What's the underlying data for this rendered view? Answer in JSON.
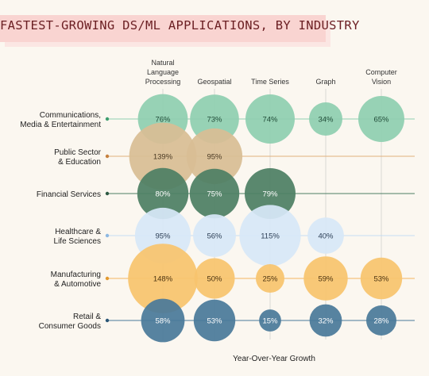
{
  "title": "FASTEST-GROWING DS/ML APPLICATIONS, BY INDUSTRY",
  "chart_data": {
    "type": "bubble-matrix",
    "xlabel": "Year-Over-Year Growth",
    "columns": [
      [
        "Natural",
        "Language",
        "Processing"
      ],
      [
        "Geospatial"
      ],
      [
        "Time Series"
      ],
      [
        "Graph"
      ],
      [
        "Computer",
        "Vision"
      ]
    ],
    "rows": [
      {
        "label": [
          "Communications,",
          "Media & Entertainment"
        ],
        "color": "#8fcfb0",
        "line": "#8fcfb0",
        "dot": "#3e9e6e",
        "text": "#1f4a36",
        "values": [
          76,
          73,
          74,
          34,
          65
        ],
        "labels": [
          "76%",
          "73%",
          "74%",
          "34%",
          "65%"
        ]
      },
      {
        "label": [
          "Public Sector",
          "& Education"
        ],
        "color": "#d8bd94",
        "line": "#e2b07d",
        "dot": "#c6813f",
        "text": "#4a3a24",
        "values": [
          139,
          95,
          null,
          null,
          null
        ],
        "labels": [
          "139%",
          "95%",
          "",
          "",
          ""
        ]
      },
      {
        "label": [
          "Financial Services"
        ],
        "color": "#4e7f64",
        "line": "#4e7f64",
        "dot": "#2e5a43",
        "text": "#ffffff",
        "values": [
          80,
          75,
          79,
          null,
          null
        ],
        "labels": [
          "80%",
          "75%",
          "79%",
          "",
          ""
        ]
      },
      {
        "label": [
          "Healthcare &",
          "Life Sciences"
        ],
        "color": "#d7e7f8",
        "line": "#c6dcf3",
        "dot": "#8db8e2",
        "text": "#2c3e55",
        "values": [
          95,
          56,
          115,
          40,
          null
        ],
        "labels": [
          "95%",
          "56%",
          "115%",
          "40%",
          ""
        ]
      },
      {
        "label": [
          "Manufacturing",
          "& Automotive"
        ],
        "color": "#f8c46e",
        "line": "#f3b560",
        "dot": "#e39a2f",
        "text": "#4b3310",
        "values": [
          148,
          50,
          25,
          59,
          53
        ],
        "labels": [
          "148%",
          "50%",
          "25%",
          "59%",
          "53%"
        ]
      },
      {
        "label": [
          "Retail &",
          "Consumer Goods"
        ],
        "color": "#4a7a9a",
        "line": "#4a7a9a",
        "dot": "#2a5676",
        "text": "#ffffff",
        "values": [
          58,
          53,
          15,
          32,
          28
        ],
        "labels": [
          "58%",
          "53%",
          "15%",
          "32%",
          "28%"
        ]
      }
    ]
  }
}
